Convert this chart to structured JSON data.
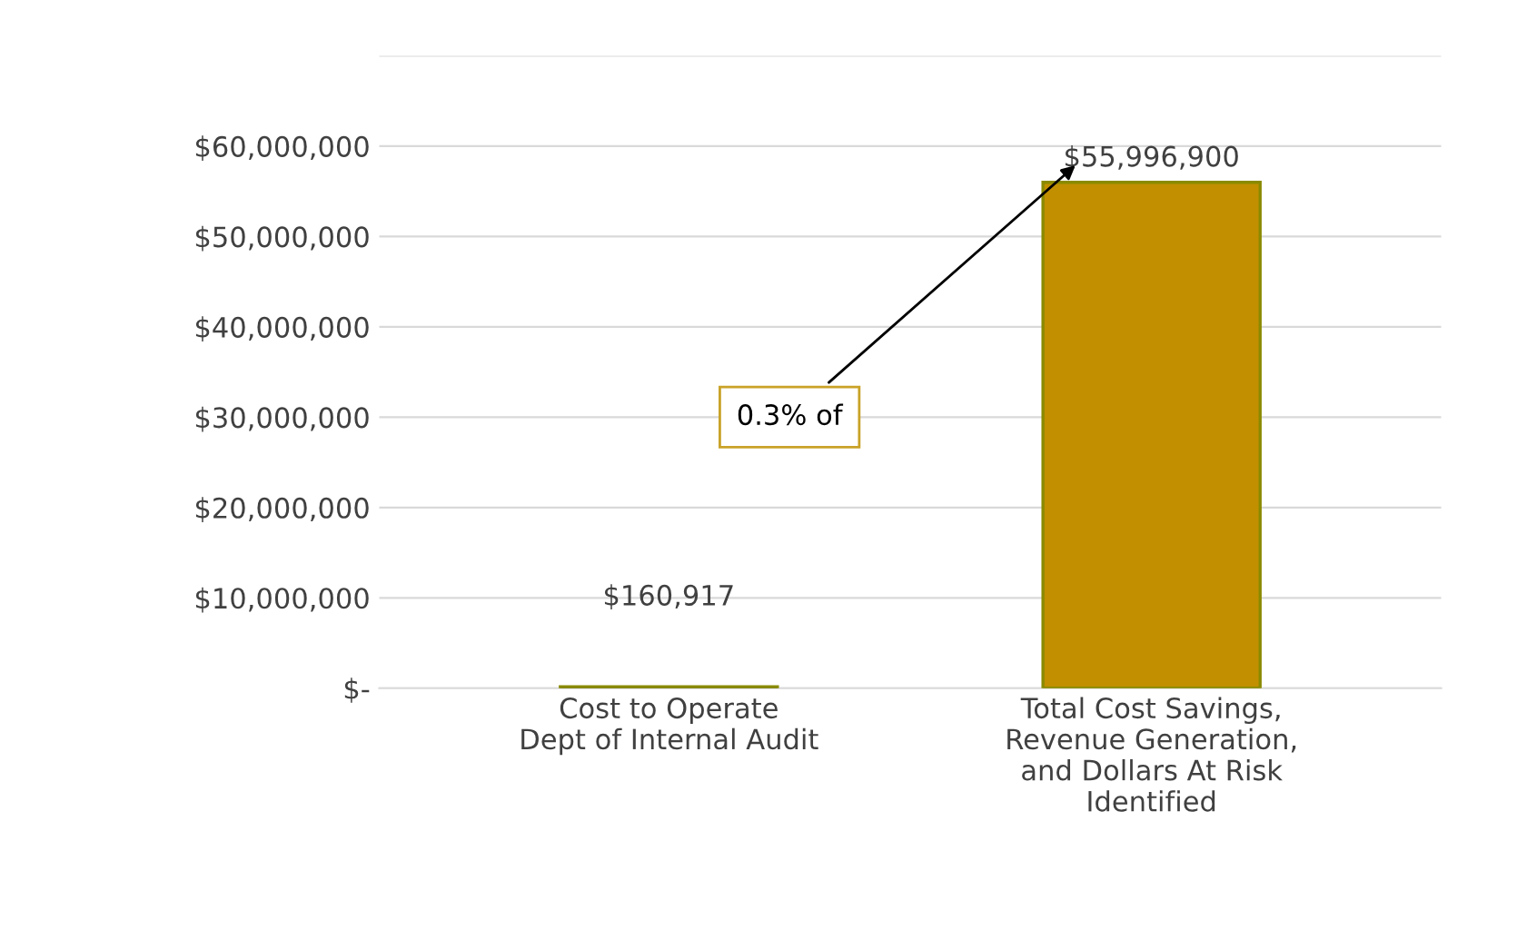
{
  "chart_data": {
    "type": "bar",
    "categories": [
      "Cost to Operate\nDept of Internal Audit",
      "Total Cost Savings,\nRevenue Generation,\nand Dollars At Risk\nIdentified"
    ],
    "values": [
      160917,
      55996900
    ],
    "colors": [
      "#2b4420",
      "#c18f00"
    ],
    "value_labels": [
      "$160,917",
      "$55,996,900"
    ],
    "annotations": [
      "0.3% of"
    ],
    "ylim": [
      0,
      70000000
    ],
    "yticks": [
      {
        "value": 0,
        "label": "$-"
      },
      {
        "value": 10000000,
        "label": "$10,000,000"
      },
      {
        "value": 20000000,
        "label": "$20,000,000"
      },
      {
        "value": 30000000,
        "label": "$30,000,000"
      },
      {
        "value": 40000000,
        "label": "$40,000,000"
      },
      {
        "value": 50000000,
        "label": "$50,000,000"
      },
      {
        "value": 60000000,
        "label": "$60,000,000"
      },
      {
        "value": 70000000,
        "label": null
      }
    ],
    "grid": "y"
  }
}
